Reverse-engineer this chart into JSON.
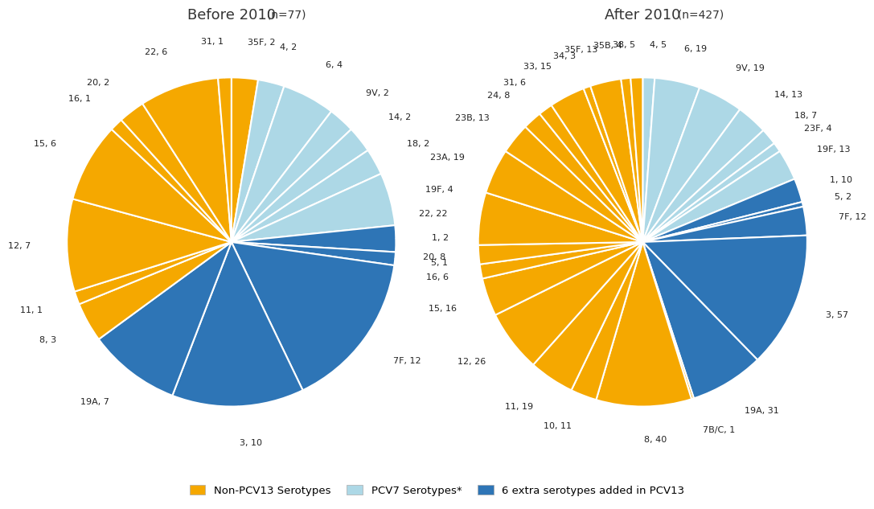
{
  "title_left": "Before 2010",
  "title_left_n": "(n=77)",
  "title_right": "After 2010",
  "title_right_n": "(n=427)",
  "colors": {
    "non_pcv13": "#F5A800",
    "pcv7": "#ADD8E6",
    "extra_pcv13": "#2E75B6"
  },
  "pie_left": [
    {
      "label": "35F",
      "value": 2,
      "category": "non_pcv13"
    },
    {
      "label": "4",
      "value": 2,
      "category": "pcv7"
    },
    {
      "label": "6",
      "value": 4,
      "category": "pcv7"
    },
    {
      "label": "9V",
      "value": 2,
      "category": "pcv7"
    },
    {
      "label": "14",
      "value": 2,
      "category": "pcv7"
    },
    {
      "label": "18",
      "value": 2,
      "category": "pcv7"
    },
    {
      "label": "19F",
      "value": 4,
      "category": "pcv7"
    },
    {
      "label": "1",
      "value": 2,
      "category": "extra_pcv13"
    },
    {
      "label": "5",
      "value": 1,
      "category": "extra_pcv13"
    },
    {
      "label": "7F",
      "value": 12,
      "category": "extra_pcv13"
    },
    {
      "label": "3",
      "value": 10,
      "category": "extra_pcv13"
    },
    {
      "label": "19A",
      "value": 7,
      "category": "extra_pcv13"
    },
    {
      "label": "8",
      "value": 3,
      "category": "non_pcv13"
    },
    {
      "label": "11",
      "value": 1,
      "category": "non_pcv13"
    },
    {
      "label": "12",
      "value": 7,
      "category": "non_pcv13"
    },
    {
      "label": "15",
      "value": 6,
      "category": "non_pcv13"
    },
    {
      "label": "16",
      "value": 1,
      "category": "non_pcv13"
    },
    {
      "label": "20",
      "value": 2,
      "category": "non_pcv13"
    },
    {
      "label": "22",
      "value": 6,
      "category": "non_pcv13"
    },
    {
      "label": "31",
      "value": 1,
      "category": "non_pcv13"
    }
  ],
  "pie_right": [
    {
      "label": "4",
      "value": 5,
      "category": "pcv7"
    },
    {
      "label": "6",
      "value": 19,
      "category": "pcv7"
    },
    {
      "label": "9V",
      "value": 19,
      "category": "pcv7"
    },
    {
      "label": "14",
      "value": 13,
      "category": "pcv7"
    },
    {
      "label": "18",
      "value": 7,
      "category": "pcv7"
    },
    {
      "label": "23F",
      "value": 4,
      "category": "pcv7"
    },
    {
      "label": "19F",
      "value": 13,
      "category": "pcv7"
    },
    {
      "label": "1",
      "value": 10,
      "category": "extra_pcv13"
    },
    {
      "label": "5",
      "value": 2,
      "category": "extra_pcv13"
    },
    {
      "label": "7F",
      "value": 12,
      "category": "extra_pcv13"
    },
    {
      "label": "3",
      "value": 57,
      "category": "extra_pcv13"
    },
    {
      "label": "19A",
      "value": 31,
      "category": "extra_pcv13"
    },
    {
      "label": "7B/C",
      "value": 1,
      "category": "non_pcv13"
    },
    {
      "label": "8",
      "value": 40,
      "category": "non_pcv13"
    },
    {
      "label": "10",
      "value": 11,
      "category": "non_pcv13"
    },
    {
      "label": "11",
      "value": 19,
      "category": "non_pcv13"
    },
    {
      "label": "12",
      "value": 26,
      "category": "non_pcv13"
    },
    {
      "label": "15",
      "value": 16,
      "category": "non_pcv13"
    },
    {
      "label": "16",
      "value": 6,
      "category": "non_pcv13"
    },
    {
      "label": "20",
      "value": 8,
      "category": "non_pcv13"
    },
    {
      "label": "22",
      "value": 22,
      "category": "non_pcv13"
    },
    {
      "label": "23A",
      "value": 19,
      "category": "non_pcv13"
    },
    {
      "label": "23B",
      "value": 13,
      "category": "non_pcv13"
    },
    {
      "label": "24",
      "value": 8,
      "category": "non_pcv13"
    },
    {
      "label": "31",
      "value": 6,
      "category": "non_pcv13"
    },
    {
      "label": "33",
      "value": 15,
      "category": "non_pcv13"
    },
    {
      "label": "34",
      "value": 3,
      "category": "non_pcv13"
    },
    {
      "label": "35F",
      "value": 13,
      "category": "non_pcv13"
    },
    {
      "label": "35B",
      "value": 4,
      "category": "non_pcv13"
    },
    {
      "label": "38",
      "value": 5,
      "category": "non_pcv13"
    }
  ],
  "legend": [
    {
      "label": "Non-PCV13 Serotypes",
      "color": "#F5A800"
    },
    {
      "label": "PCV7 Serotypes*",
      "color": "#ADD8E6"
    },
    {
      "label": "6 extra serotypes added in PCV13",
      "color": "#2E75B6"
    }
  ],
  "bg_color": "#FFFFFF",
  "wedge_linecolor": "#FFFFFF",
  "wedge_linewidth": 1.5,
  "fontsize_labels": 8.0,
  "fontsize_title": 13,
  "fontsize_n": 10
}
